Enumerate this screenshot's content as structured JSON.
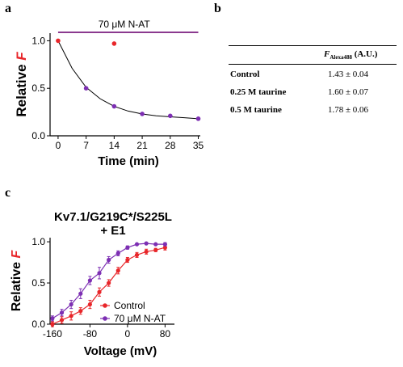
{
  "panels": {
    "a": "a",
    "b": "b",
    "c": "c"
  },
  "chart_data": [
    {
      "type": "scatter",
      "panel": "a",
      "treatment_bar_label": "70 μM  N-AT",
      "ylabel_prefix": "Relative ",
      "ylabel_var": "F",
      "xlabel": "Time (min)",
      "xlim": [
        -2,
        35.5
      ],
      "ylim": [
        0,
        1.08
      ],
      "xticks": [
        "0",
        "7",
        "14",
        "21",
        "28",
        "35"
      ],
      "yticks": [
        "0.0",
        "0.5",
        "1.0"
      ],
      "colors": {
        "outlier": "#e8262a",
        "data": "#7d2fb3",
        "bar": "#8b3a8f",
        "fit": "#000000"
      },
      "series": [
        {
          "x": [
            0,
            14
          ],
          "y": [
            1.0,
            0.97
          ],
          "color": "#e8262a"
        },
        {
          "x": [
            7,
            14,
            21,
            28,
            35
          ],
          "y": [
            0.5,
            0.31,
            0.23,
            0.21,
            0.18
          ],
          "color": "#7d2fb3"
        }
      ],
      "fit": {
        "model": "exponential",
        "x": [
          0,
          3.5,
          7,
          10.5,
          14,
          17.5,
          21,
          24.5,
          28,
          31.5,
          35
        ],
        "y": [
          1.0,
          0.71,
          0.51,
          0.39,
          0.31,
          0.26,
          0.23,
          0.21,
          0.2,
          0.19,
          0.18
        ]
      }
    },
    {
      "type": "line",
      "panel": "c",
      "title_line1": "Kv7.1/G219C*/S225L",
      "title_line2": "+ E1",
      "ylabel_prefix": "Relative ",
      "ylabel_var": "F",
      "xlabel": "Voltage (mV)",
      "xlim": [
        -165,
        100
      ],
      "ylim": [
        0,
        1.05
      ],
      "xticks": [
        "-160",
        "-80",
        "0",
        "80"
      ],
      "yticks": [
        "0.0",
        "0.5",
        "1.0"
      ],
      "series": [
        {
          "name": "Control",
          "color": "#e8262a",
          "x": [
            -160,
            -140,
            -120,
            -100,
            -80,
            -60,
            -40,
            -20,
            0,
            20,
            40,
            60,
            80
          ],
          "y": [
            0.0,
            0.05,
            0.1,
            0.16,
            0.24,
            0.39,
            0.5,
            0.65,
            0.78,
            0.84,
            0.88,
            0.9,
            0.93
          ],
          "err": [
            0.03,
            0.04,
            0.05,
            0.04,
            0.05,
            0.05,
            0.04,
            0.04,
            0.03,
            0.03,
            0.03,
            0.02,
            0.03
          ]
        },
        {
          "name": "70 μM N-AT",
          "color": "#7d2fb3",
          "x": [
            -160,
            -140,
            -120,
            -100,
            -80,
            -60,
            -40,
            -20,
            0,
            20,
            40,
            60,
            80
          ],
          "y": [
            0.07,
            0.14,
            0.24,
            0.37,
            0.53,
            0.62,
            0.78,
            0.86,
            0.93,
            0.97,
            0.98,
            0.97,
            0.97
          ],
          "err": [
            0.03,
            0.04,
            0.05,
            0.06,
            0.05,
            0.07,
            0.04,
            0.03,
            0.02,
            0.01,
            0.01,
            0.01,
            0.02
          ]
        }
      ]
    }
  ],
  "table": {
    "header_var": "F",
    "header_sub": "Alexa488",
    "header_unit": " (A.U.)",
    "rows": [
      {
        "label": "Control",
        "value": "1.43 ± 0.04"
      },
      {
        "label": "0.25 M taurine",
        "value": "1.60 ± 0.07"
      },
      {
        "label": "0.5 M taurine",
        "value": "1.78 ± 0.06"
      }
    ]
  }
}
